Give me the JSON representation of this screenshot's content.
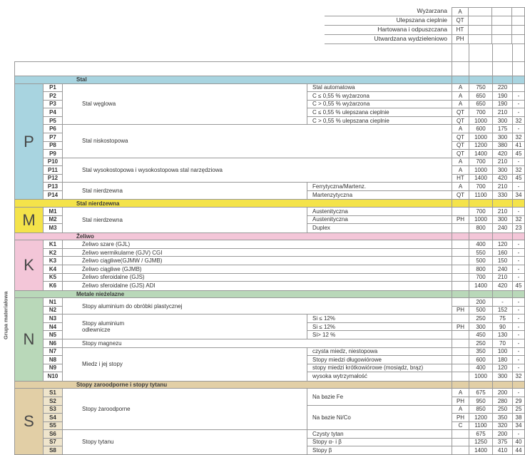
{
  "side_label": "Grupa materiałowa",
  "legend": {
    "rows": [
      {
        "label": "Wyżarzana",
        "code": "A"
      },
      {
        "label": "Ulepszana cieplnie",
        "code": "QT"
      },
      {
        "label": "Hartowana i odpuszczana",
        "code": "HT"
      },
      {
        "label": "Utwardzana wydzieleniowo",
        "code": "PH"
      }
    ]
  },
  "table": {
    "sections": [
      {
        "letter": "P",
        "header": "Stal",
        "color": "#a8d4e0",
        "code_bg": "#ffffff",
        "labels": [
          {
            "col": "c1",
            "start": 0,
            "span": 5,
            "text": "Stal węglowa"
          },
          {
            "col": "both",
            "start": 5,
            "span": 4,
            "text": "Stal niskostopowa"
          },
          {
            "col": "both",
            "start": 9,
            "span": 3,
            "text": "Stal wysokostopowa i wysokostopowa stal narzędziowa"
          },
          {
            "col": "c1",
            "start": 12,
            "span": 2,
            "text": "Stal nierdzewna"
          },
          {
            "col": "c2",
            "start": 0,
            "span": 1,
            "text": "Stal automatowa"
          },
          {
            "col": "c2",
            "start": 1,
            "span": 1,
            "text": "C ≤ 0,55 % wyżarzona"
          },
          {
            "col": "c2",
            "start": 2,
            "span": 1,
            "text": "C > 0,55 % wyżarzona"
          },
          {
            "col": "c2",
            "start": 3,
            "span": 1,
            "text": "C ≤ 0,55 % ulepszana cieplnie"
          },
          {
            "col": "c2",
            "start": 4,
            "span": 1,
            "text": "C > 0,55 % ulepszana cieplnie"
          },
          {
            "col": "c2",
            "start": 12,
            "span": 1,
            "text": "Ferrytyczna/Martenz."
          },
          {
            "col": "c2",
            "start": 13,
            "span": 1,
            "text": "Martenzytyczna"
          }
        ],
        "rows": [
          {
            "code": "P1",
            "treat": "A",
            "v1": "750",
            "v2": "220",
            "v3": ""
          },
          {
            "code": "P2",
            "treat": "A",
            "v1": "650",
            "v2": "190",
            "v3": "-"
          },
          {
            "code": "P3",
            "treat": "A",
            "v1": "650",
            "v2": "190",
            "v3": "-"
          },
          {
            "code": "P4",
            "treat": "QT",
            "v1": "700",
            "v2": "210",
            "v3": "-"
          },
          {
            "code": "P5",
            "treat": "QT",
            "v1": "1000",
            "v2": "300",
            "v3": "32"
          },
          {
            "code": "P6",
            "treat": "A",
            "v1": "600",
            "v2": "175",
            "v3": "-"
          },
          {
            "code": "P7",
            "treat": "QT",
            "v1": "1000",
            "v2": "300",
            "v3": "32"
          },
          {
            "code": "P8",
            "treat": "QT",
            "v1": "1200",
            "v2": "380",
            "v3": "41"
          },
          {
            "code": "P9",
            "treat": "QT",
            "v1": "1400",
            "v2": "420",
            "v3": "45"
          },
          {
            "code": "P10",
            "treat": "A",
            "v1": "700",
            "v2": "210",
            "v3": "-"
          },
          {
            "code": "P11",
            "treat": "A",
            "v1": "1000",
            "v2": "300",
            "v3": "32"
          },
          {
            "code": "P12",
            "treat": "HT",
            "v1": "1400",
            "v2": "420",
            "v3": "45"
          },
          {
            "code": "P13",
            "treat": "A",
            "v1": "700",
            "v2": "210",
            "v3": "-"
          },
          {
            "code": "P14",
            "treat": "QT",
            "v1": "1100",
            "v2": "330",
            "v3": "34"
          }
        ]
      },
      {
        "letter": "M",
        "header": "Stal nierdzewna",
        "color": "#f4e34a",
        "code_bg": "#ffffff",
        "labels": [
          {
            "col": "c1",
            "start": 0,
            "span": 3,
            "text": "Stal nierdzewna"
          },
          {
            "col": "c2",
            "start": 0,
            "span": 1,
            "text": "Austenityczna"
          },
          {
            "col": "c2",
            "start": 1,
            "span": 1,
            "text": "Austenityczna"
          },
          {
            "col": "c2",
            "start": 2,
            "span": 1,
            "text": "Duplex"
          }
        ],
        "rows": [
          {
            "code": "M1",
            "treat": "",
            "v1": "700",
            "v2": "210",
            "v3": "-"
          },
          {
            "code": "M2",
            "treat": "PH",
            "v1": "1000",
            "v2": "300",
            "v3": "32"
          },
          {
            "code": "M3",
            "treat": "",
            "v1": "800",
            "v2": "240",
            "v3": "23"
          }
        ]
      },
      {
        "letter": "K",
        "header": "Żeliwo",
        "color": "#f3c6d8",
        "code_bg": "#ffffff",
        "labels": [
          {
            "col": "both",
            "start": 0,
            "span": 1,
            "text": "Żeliwo szare (GJL)"
          },
          {
            "col": "both",
            "start": 1,
            "span": 1,
            "text": "Żeliwo wermikularne (GJV) CGI"
          },
          {
            "col": "both",
            "start": 2,
            "span": 1,
            "text": "Żeliwo ciągliwe(GJMW / GJMB)"
          },
          {
            "col": "both",
            "start": 3,
            "span": 1,
            "text": "Żeliwo ciągliwe (GJMB)"
          },
          {
            "col": "both",
            "start": 4,
            "span": 1,
            "text": "Żeliwo sferoidalne (GJS)"
          },
          {
            "col": "both",
            "start": 5,
            "span": 1,
            "text": "Żeliwo sferoidalne (GJS) ADI"
          }
        ],
        "rows": [
          {
            "code": "K1",
            "treat": "",
            "v1": "400",
            "v2": "120",
            "v3": "-"
          },
          {
            "code": "K2",
            "treat": "",
            "v1": "550",
            "v2": "160",
            "v3": "-"
          },
          {
            "code": "K3",
            "treat": "",
            "v1": "500",
            "v2": "150",
            "v3": "-"
          },
          {
            "code": "K4",
            "treat": "",
            "v1": "800",
            "v2": "240",
            "v3": "-"
          },
          {
            "code": "K5",
            "treat": "",
            "v1": "700",
            "v2": "210",
            "v3": "-"
          },
          {
            "code": "K6",
            "treat": "",
            "v1": "1400",
            "v2": "420",
            "v3": "45"
          }
        ]
      },
      {
        "letter": "N",
        "header": "Metale nieżelazne",
        "color": "#b9d8b9",
        "code_bg": "#ffffff",
        "labels": [
          {
            "col": "both",
            "start": 0,
            "span": 2,
            "text": "Stopy aluminium do obróbki plastycznej"
          },
          {
            "col": "c1",
            "start": 2,
            "span": 3,
            "text": "Stopy aluminium\nodlewnicze"
          },
          {
            "col": "c2",
            "start": 2,
            "span": 1,
            "text": "Si ≤ 12%"
          },
          {
            "col": "c2",
            "start": 3,
            "span": 1,
            "text": "Si ≤ 12%"
          },
          {
            "col": "c2",
            "start": 4,
            "span": 1,
            "text": "Si> 12 %"
          },
          {
            "col": "both",
            "start": 5,
            "span": 1,
            "text": "Stopy magnezu"
          },
          {
            "col": "c1",
            "start": 6,
            "span": 4,
            "text": "Miedz i jej stopy"
          },
          {
            "col": "c2",
            "start": 6,
            "span": 1,
            "text": "czysta miedz, niestopowa"
          },
          {
            "col": "c2",
            "start": 7,
            "span": 1,
            "text": "Stopy miedzi długowiórowe"
          },
          {
            "col": "c2",
            "start": 8,
            "span": 1,
            "text": "stopy miedzi krótkowiórowe (mosiądz, brąz)"
          },
          {
            "col": "c2",
            "start": 9,
            "span": 1,
            "text": "wysoka wytrzymałość"
          }
        ],
        "rows": [
          {
            "code": "N1",
            "treat": "",
            "v1": "200",
            "v2": "-",
            "v3": "-"
          },
          {
            "code": "N2",
            "treat": "PH",
            "v1": "500",
            "v2": "152",
            "v3": "-"
          },
          {
            "code": "N3",
            "treat": "",
            "v1": "250",
            "v2": "75",
            "v3": "-"
          },
          {
            "code": "N4",
            "treat": "PH",
            "v1": "300",
            "v2": "90",
            "v3": "-"
          },
          {
            "code": "N5",
            "treat": "",
            "v1": "450",
            "v2": "130",
            "v3": "-"
          },
          {
            "code": "N6",
            "treat": "",
            "v1": "250",
            "v2": "70",
            "v3": "-"
          },
          {
            "code": "N7",
            "treat": "",
            "v1": "350",
            "v2": "100",
            "v3": "-"
          },
          {
            "code": "N8",
            "treat": "",
            "v1": "600",
            "v2": "180",
            "v3": "-"
          },
          {
            "code": "N9",
            "treat": "",
            "v1": "400",
            "v2": "120",
            "v3": "-"
          },
          {
            "code": "N10",
            "treat": "",
            "v1": "1000",
            "v2": "300",
            "v3": "32"
          }
        ]
      },
      {
        "letter": "S",
        "header": "Stopy zaroodporne i stopy tytanu",
        "color": "#e2cfa6",
        "code_bg": "#efe5cc",
        "labels": [
          {
            "col": "c1",
            "start": 0,
            "span": 5,
            "text": "Stopy żaroodporne"
          },
          {
            "col": "c2",
            "start": 0,
            "span": 2,
            "text": "Na bazie Fe"
          },
          {
            "col": "c2",
            "start": 2,
            "span": 3,
            "text": "Na bazie Ni/Co"
          },
          {
            "col": "c1",
            "start": 5,
            "span": 3,
            "text": "Stopy tytanu"
          },
          {
            "col": "c2",
            "start": 5,
            "span": 1,
            "text": "Czysty tytan"
          },
          {
            "col": "c2",
            "start": 6,
            "span": 1,
            "text": "Stopy  α- i β"
          },
          {
            "col": "c2",
            "start": 7,
            "span": 1,
            "text": "Stopy β"
          }
        ],
        "rows": [
          {
            "code": "S1",
            "treat": "A",
            "v1": "675",
            "v2": "200",
            "v3": "-"
          },
          {
            "code": "S2",
            "treat": "PH",
            "v1": "950",
            "v2": "280",
            "v3": "29"
          },
          {
            "code": "S3",
            "treat": "A",
            "v1": "850",
            "v2": "250",
            "v3": "25"
          },
          {
            "code": "S4",
            "treat": "PH",
            "v1": "1200",
            "v2": "350",
            "v3": "38"
          },
          {
            "code": "S5",
            "treat": "C",
            "v1": "1100",
            "v2": "320",
            "v3": "34"
          },
          {
            "code": "S6",
            "treat": "",
            "v1": "675",
            "v2": "200",
            "v3": "-"
          },
          {
            "code": "S7",
            "treat": "",
            "v1": "1250",
            "v2": "375",
            "v3": "40"
          },
          {
            "code": "S8",
            "treat": "",
            "v1": "1400",
            "v2": "410",
            "v3": "44"
          }
        ]
      }
    ]
  }
}
